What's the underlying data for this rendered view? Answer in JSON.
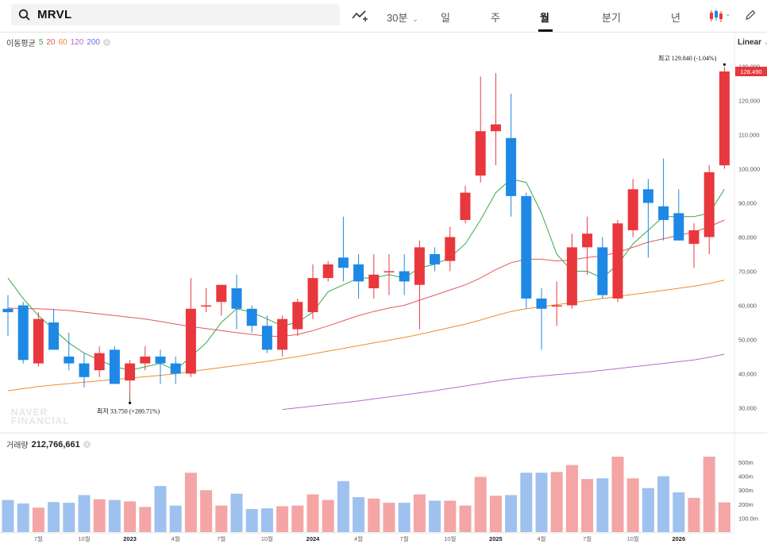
{
  "header": {
    "symbol": "MRVL",
    "interval": "30분",
    "tabs": [
      "일",
      "주",
      "월",
      "분기",
      "년"
    ],
    "active_tab": "월"
  },
  "legend": {
    "ma_label": "이동평균",
    "ma": [
      {
        "period": "5",
        "color": "#3aa84a"
      },
      {
        "period": "20",
        "color": "#e05a5a"
      },
      {
        "period": "60",
        "color": "#f08c2d"
      },
      {
        "period": "120",
        "color": "#b46bd6"
      },
      {
        "period": "200",
        "color": "#6a72e0"
      }
    ],
    "close_icon": "×"
  },
  "scale_mode": "Linear",
  "volume": {
    "label": "거래량",
    "value": "212,766,661"
  },
  "watermark": [
    "NAVER",
    "FINANCIAL"
  ],
  "chart_data": {
    "type": "candlestick",
    "title": "",
    "up_color": "#e8383d",
    "down_color": "#1e88e5",
    "ylim": [
      25,
      135
    ],
    "y_ticks": [
      {
        "v": 30,
        "label": "30,000"
      },
      {
        "v": 40,
        "label": "40,000"
      },
      {
        "v": 50,
        "label": "50,000"
      },
      {
        "v": 60,
        "label": "60,000"
      },
      {
        "v": 70,
        "label": "70,000"
      },
      {
        "v": 80,
        "label": "80,000"
      },
      {
        "v": 90,
        "label": "90,000"
      },
      {
        "v": 100,
        "label": "100,000"
      },
      {
        "v": 110,
        "label": "110,000"
      },
      {
        "v": 120,
        "label": "120,000"
      },
      {
        "v": 130,
        "label": "130,000"
      }
    ],
    "x_ticks": [
      {
        "i": 2,
        "label": "7월",
        "bold": false
      },
      {
        "i": 5,
        "label": "10월",
        "bold": false
      },
      {
        "i": 8,
        "label": "2023",
        "bold": true
      },
      {
        "i": 11,
        "label": "4월",
        "bold": false
      },
      {
        "i": 14,
        "label": "7월",
        "bold": false
      },
      {
        "i": 17,
        "label": "10월",
        "bold": false
      },
      {
        "i": 20,
        "label": "2024",
        "bold": true
      },
      {
        "i": 23,
        "label": "4월",
        "bold": false
      },
      {
        "i": 26,
        "label": "7월",
        "bold": false
      },
      {
        "i": 29,
        "label": "10월",
        "bold": false
      },
      {
        "i": 32,
        "label": "2025",
        "bold": true
      },
      {
        "i": 35,
        "label": "4월",
        "bold": false
      },
      {
        "i": 38,
        "label": "7월",
        "bold": false
      },
      {
        "i": 41,
        "label": "10월",
        "bold": false
      },
      {
        "i": 44,
        "label": "2026",
        "bold": true
      }
    ],
    "candles": [
      {
        "o": 59,
        "h": 63,
        "l": 51,
        "c": 58
      },
      {
        "o": 60,
        "h": 61,
        "l": 43,
        "c": 44
      },
      {
        "o": 43,
        "h": 58,
        "l": 42,
        "c": 56
      },
      {
        "o": 55,
        "h": 59,
        "l": 47,
        "c": 47
      },
      {
        "o": 45,
        "h": 52,
        "l": 41,
        "c": 43
      },
      {
        "o": 43,
        "h": 46,
        "l": 36,
        "c": 39
      },
      {
        "o": 41,
        "h": 48,
        "l": 39,
        "c": 46
      },
      {
        "o": 47,
        "h": 48,
        "l": 37,
        "c": 37
      },
      {
        "o": 38,
        "h": 44,
        "l": 33.75,
        "c": 43
      },
      {
        "o": 43,
        "h": 48,
        "l": 41,
        "c": 45
      },
      {
        "o": 45,
        "h": 47,
        "l": 37,
        "c": 43
      },
      {
        "o": 43,
        "h": 45,
        "l": 37,
        "c": 40
      },
      {
        "o": 40,
        "h": 68,
        "l": 39,
        "c": 59
      },
      {
        "o": 60,
        "h": 65,
        "l": 58,
        "c": 60
      },
      {
        "o": 61,
        "h": 66,
        "l": 57,
        "c": 66
      },
      {
        "o": 65,
        "h": 69,
        "l": 53,
        "c": 59
      },
      {
        "o": 59,
        "h": 60,
        "l": 52,
        "c": 54
      },
      {
        "o": 54,
        "h": 57,
        "l": 46,
        "c": 47
      },
      {
        "o": 47,
        "h": 57,
        "l": 45,
        "c": 56
      },
      {
        "o": 53,
        "h": 62,
        "l": 51,
        "c": 61
      },
      {
        "o": 58,
        "h": 72,
        "l": 56,
        "c": 68
      },
      {
        "o": 68,
        "h": 73,
        "l": 67,
        "c": 72
      },
      {
        "o": 74,
        "h": 86,
        "l": 67,
        "c": 71
      },
      {
        "o": 72,
        "h": 75,
        "l": 62,
        "c": 67
      },
      {
        "o": 65,
        "h": 75,
        "l": 62,
        "c": 69
      },
      {
        "o": 70,
        "h": 75,
        "l": 63,
        "c": 70
      },
      {
        "o": 70,
        "h": 75,
        "l": 63,
        "c": 67
      },
      {
        "o": 66,
        "h": 79,
        "l": 53,
        "c": 77
      },
      {
        "o": 75,
        "h": 77,
        "l": 70,
        "c": 72
      },
      {
        "o": 73,
        "h": 83,
        "l": 70,
        "c": 80
      },
      {
        "o": 85,
        "h": 95,
        "l": 84,
        "c": 93
      },
      {
        "o": 98,
        "h": 127,
        "l": 96,
        "c": 111
      },
      {
        "o": 111,
        "h": 128,
        "l": 101,
        "c": 113
      },
      {
        "o": 109,
        "h": 122,
        "l": 86,
        "c": 92
      },
      {
        "o": 92,
        "h": 93,
        "l": 59,
        "c": 62
      },
      {
        "o": 62,
        "h": 65,
        "l": 47,
        "c": 59
      },
      {
        "o": 60,
        "h": 67,
        "l": 54,
        "c": 60
      },
      {
        "o": 60,
        "h": 81,
        "l": 59,
        "c": 77
      },
      {
        "o": 77,
        "h": 86,
        "l": 69,
        "c": 81
      },
      {
        "o": 77,
        "h": 80,
        "l": 62,
        "c": 63
      },
      {
        "o": 62,
        "h": 85,
        "l": 61,
        "c": 84
      },
      {
        "o": 82,
        "h": 97,
        "l": 80,
        "c": 94
      },
      {
        "o": 94,
        "h": 97,
        "l": 74,
        "c": 90
      },
      {
        "o": 89,
        "h": 103,
        "l": 79,
        "c": 85
      },
      {
        "o": 87,
        "h": 94,
        "l": 79,
        "c": 79
      },
      {
        "o": 78,
        "h": 84,
        "l": 71,
        "c": 82
      },
      {
        "o": 80,
        "h": 101,
        "l": 75,
        "c": 99
      },
      {
        "o": 101,
        "h": 129.84,
        "l": 100,
        "c": 128.49
      }
    ],
    "volume": {
      "unit": "m",
      "ylim": [
        0,
        580
      ],
      "ticks": [
        {
          "v": 100,
          "label": "100.0m"
        },
        {
          "v": 200,
          "label": "200m"
        },
        {
          "v": 300,
          "label": "300m"
        },
        {
          "v": 400,
          "label": "400m"
        },
        {
          "v": 500,
          "label": "500m"
        }
      ],
      "values": [
        230,
        205,
        175,
        215,
        210,
        265,
        235,
        230,
        220,
        180,
        330,
        190,
        425,
        300,
        190,
        275,
        165,
        170,
        185,
        190,
        270,
        230,
        365,
        250,
        240,
        210,
        210,
        270,
        225,
        225,
        190,
        395,
        260,
        265,
        425,
        425,
        430,
        480,
        380,
        385,
        540,
        385,
        315,
        400,
        285,
        245,
        540,
        213
      ]
    },
    "moving_averages": [
      {
        "name": "MA5",
        "color": "#3aa84a",
        "values": [
          68,
          62,
          57,
          53,
          49,
          46,
          44,
          42,
          41,
          42,
          43,
          41,
          45,
          49,
          55,
          59,
          58,
          56,
          54,
          55,
          58,
          64,
          66,
          68,
          68,
          69,
          68,
          71,
          72,
          74,
          78,
          85,
          93,
          97,
          96,
          87,
          75,
          70,
          70,
          68,
          72,
          78,
          82,
          86,
          86,
          86,
          87,
          94
        ]
      },
      {
        "name": "MA20",
        "color": "#e05a5a",
        "values": [
          59.2,
          59,
          59,
          58.8,
          58.5,
          58,
          57.5,
          57,
          56.5,
          56,
          55.3,
          54.5,
          53.8,
          53.2,
          52.6,
          52,
          51.5,
          51,
          50.9,
          51.5,
          52.6,
          54,
          55.5,
          57,
          58.2,
          59.2,
          60,
          61.5,
          63,
          64.5,
          66,
          68,
          70.5,
          72.5,
          73.5,
          73.5,
          73,
          73.3,
          74,
          74.5,
          75.5,
          77,
          78.5,
          79.5,
          80.5,
          81.5,
          83,
          85
        ]
      },
      {
        "name": "MA60",
        "color": "#f08c2d",
        "values": [
          35,
          35.6,
          36.2,
          36.7,
          37.1,
          37.5,
          37.9,
          38.3,
          38.7,
          39.1,
          39.5,
          40,
          40.6,
          41.2,
          41.8,
          42.4,
          43,
          43.6,
          44.3,
          45,
          45.8,
          46.6,
          47.4,
          48.2,
          49,
          49.8,
          50.6,
          51.5,
          52.5,
          53.5,
          54.5,
          55.7,
          57,
          58.2,
          59,
          59.6,
          60.2,
          60.8,
          61.4,
          62,
          62.6,
          63.2,
          63.8,
          64.4,
          65,
          65.6,
          66.4,
          67.4
        ]
      },
      {
        "name": "MA120",
        "color": "#b46bd6",
        "values": [
          null,
          null,
          null,
          null,
          null,
          null,
          null,
          null,
          null,
          null,
          null,
          null,
          null,
          null,
          null,
          null,
          null,
          null,
          29.5,
          30,
          30.5,
          31,
          31.5,
          32,
          32.6,
          33.2,
          33.8,
          34.4,
          35,
          35.7,
          36.4,
          37.1,
          37.8,
          38.4,
          38.9,
          39.3,
          39.7,
          40.1,
          40.5,
          41,
          41.5,
          42,
          42.5,
          43,
          43.5,
          44,
          44.8,
          45.7
        ]
      }
    ],
    "annotations": {
      "low": {
        "i": 8,
        "text": "최저  33.750 (+280.71%)"
      },
      "high": {
        "i": 47,
        "text": "최고  129.840 (-1.04%)"
      },
      "last_price_label": "128.490"
    }
  }
}
